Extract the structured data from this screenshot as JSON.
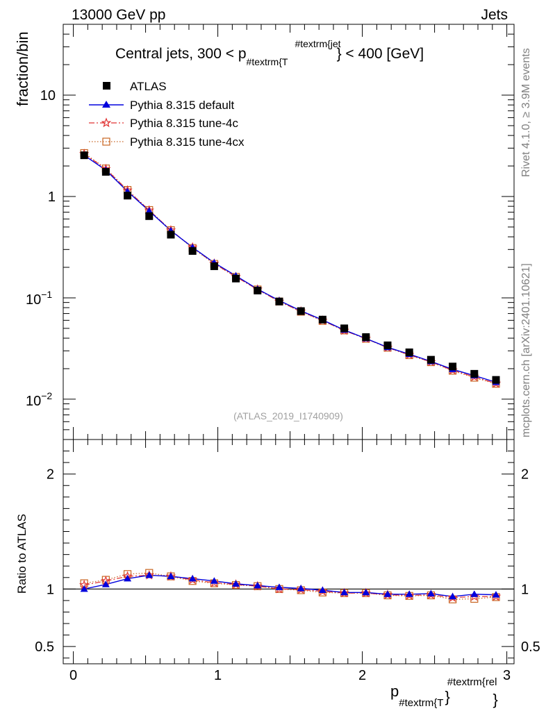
{
  "header": {
    "left": "13000 GeV pp",
    "right": "Jets"
  },
  "side_labels": {
    "rivet": "Rivet 4.1.0, ≥ 3.9M events",
    "mcplots": "mcplots.cern.ch [arXiv:2401.10621]"
  },
  "chart_data": [
    {
      "type": "scatter",
      "panel": "main",
      "title_parts": {
        "prefix": "Central jets, 300 < p",
        "sub": "#textrm{T",
        "sup": "#textrm{jet",
        "suffix": "} < 400 [GeV]"
      },
      "ylabel": "fraction/bin",
      "yscale": "log",
      "ylim": [
        0.004,
        50
      ],
      "xlim": [
        -0.07,
        3.05
      ],
      "ytick_labels": [
        {
          "value": 10,
          "base": "10",
          "exp": ""
        },
        {
          "value": 1,
          "base": "1",
          "exp": ""
        },
        {
          "value": 0.1,
          "base": "10",
          "exp": "−1"
        },
        {
          "value": 0.01,
          "base": "10",
          "exp": "−2"
        }
      ],
      "x": [
        0.075,
        0.225,
        0.375,
        0.525,
        0.675,
        0.825,
        0.975,
        1.125,
        1.275,
        1.425,
        1.575,
        1.725,
        1.875,
        2.025,
        2.175,
        2.325,
        2.475,
        2.625,
        2.775,
        2.925
      ],
      "watermark": "(ATLAS_2019_I1740909)",
      "legend": {
        "placement": "top-left",
        "entries": [
          "ATLAS",
          "Pythia 8.315 default",
          "Pythia 8.315 tune-4c",
          "Pythia 8.315 tune-4cx"
        ]
      },
      "series": [
        {
          "name": "ATLAS",
          "color": "#000000",
          "marker": "square",
          "values": [
            2.55,
            1.75,
            1.02,
            0.64,
            0.42,
            0.29,
            0.205,
            0.155,
            0.118,
            0.092,
            0.074,
            0.061,
            0.05,
            0.041,
            0.034,
            0.029,
            0.0245,
            0.021,
            0.0178,
            0.0155
          ]
        },
        {
          "name": "Pythia 8.315 default",
          "color": "#0000dd",
          "marker": "triangle",
          "line": "solid",
          "values": [
            2.55,
            1.82,
            1.12,
            0.72,
            0.46,
            0.315,
            0.222,
            0.165,
            0.122,
            0.094,
            0.0745,
            0.0605,
            0.0482,
            0.0397,
            0.0325,
            0.0278,
            0.0236,
            0.0197,
            0.0171,
            0.0147
          ]
        },
        {
          "name": "Pythia 8.315 tune-4c",
          "color": "#e03030",
          "marker": "star",
          "line": "dashdot",
          "values": [
            2.63,
            1.87,
            1.15,
            0.73,
            0.465,
            0.315,
            0.218,
            0.161,
            0.121,
            0.092,
            0.0735,
            0.0597,
            0.0475,
            0.0395,
            0.0323,
            0.0274,
            0.0233,
            0.0193,
            0.0166,
            0.0143
          ]
        },
        {
          "name": "Pythia 8.315 tune-4cx",
          "color": "#c86420",
          "marker": "open-square",
          "line": "dotted",
          "values": [
            2.68,
            1.89,
            1.16,
            0.735,
            0.465,
            0.31,
            0.216,
            0.161,
            0.121,
            0.092,
            0.073,
            0.0592,
            0.0477,
            0.0395,
            0.0322,
            0.0272,
            0.0232,
            0.0191,
            0.0163,
            0.0142
          ]
        }
      ]
    },
    {
      "type": "line",
      "panel": "ratio",
      "ylabel": "Ratio to ATLAS",
      "xlabel_parts": {
        "base": "p",
        "sub": "#textrm{T",
        "mid": "}",
        "sup": "#textrm{rel",
        "end": "}"
      },
      "ylim": [
        0.35,
        2.3
      ],
      "xlim": [
        -0.07,
        3.05
      ],
      "reference": 1,
      "ytick_labels": [
        "2",
        "1",
        "0.5"
      ],
      "ytick_values": [
        2,
        1,
        0.5
      ],
      "xtick_labels": [
        "0",
        "1",
        "2",
        "3"
      ],
      "xtick_values": [
        0,
        1,
        2,
        3
      ],
      "x": [
        0.075,
        0.225,
        0.375,
        0.525,
        0.675,
        0.825,
        0.975,
        1.125,
        1.275,
        1.425,
        1.575,
        1.725,
        1.875,
        2.025,
        2.175,
        2.325,
        2.475,
        2.625,
        2.775,
        2.925
      ],
      "series": [
        {
          "name": "Pythia 8.315 default",
          "values": [
            1.0,
            1.04,
            1.09,
            1.12,
            1.11,
            1.09,
            1.07,
            1.045,
            1.03,
            1.015,
            1.005,
            0.99,
            0.97,
            0.97,
            0.955,
            0.955,
            0.96,
            0.935,
            0.955,
            0.95
          ]
        },
        {
          "name": "Pythia 8.315 tune-4c",
          "values": [
            1.035,
            1.07,
            1.11,
            1.12,
            1.11,
            1.08,
            1.055,
            1.04,
            1.025,
            1.0,
            0.995,
            0.98,
            0.965,
            0.965,
            0.95,
            0.945,
            0.95,
            0.925,
            0.935,
            0.935
          ]
        },
        {
          "name": "Pythia 8.315 tune-4cx",
          "values": [
            1.05,
            1.08,
            1.13,
            1.14,
            1.11,
            1.07,
            1.05,
            1.035,
            1.025,
            1.0,
            0.99,
            0.97,
            0.965,
            0.965,
            0.945,
            0.94,
            0.945,
            0.91,
            0.915,
            0.93
          ]
        }
      ]
    }
  ]
}
